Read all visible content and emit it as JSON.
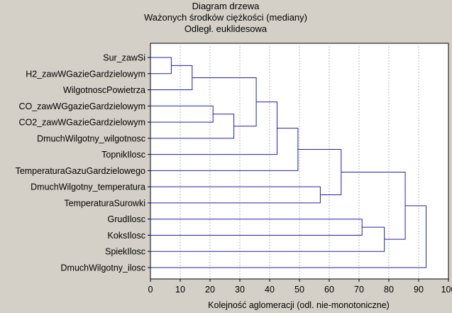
{
  "chart_data": {
    "type": "dendrogram",
    "title_lines": [
      "Diagram drzewa",
      "Ważonych środków ciężkości (mediany)",
      "Odległ. euklidesowa"
    ],
    "xlabel": "Kolejność aglomeracji (odl. nie-monotoniczne)",
    "xlim": [
      0,
      100
    ],
    "xticks": [
      "0",
      "10",
      "20",
      "30",
      "40",
      "50",
      "60",
      "70",
      "80",
      "90",
      "100"
    ],
    "grid": "vertical dashed",
    "leaves": [
      "Sur_zawSi",
      "H2_zawWGazieGardzielowym",
      "WilgotnoscPowietrza",
      "CO_zawWGgazieGardzielowym",
      "CO2_zawWGazieGardzielowym",
      "DmuchWilgotny_wilgotnosc",
      "TopnikIlosc",
      "TemperaturaGazuGardzielowego",
      "DmuchWilgotny_temperatura",
      "TemperaturaSurowki",
      "GrudIlosc",
      "KoksIlosc",
      "SpiekIlosc",
      "DmuchWilgotny_ilosc"
    ],
    "merges": [
      {
        "a": "L0",
        "b": "L1",
        "height": 7
      },
      {
        "a": "N0",
        "b": "L2",
        "height": 14
      },
      {
        "a": "L3",
        "b": "L4",
        "height": 21
      },
      {
        "a": "N2",
        "b": "L5",
        "height": 28
      },
      {
        "a": "N1",
        "b": "N3",
        "height": 35.5
      },
      {
        "a": "N4",
        "b": "L6",
        "height": 42.5
      },
      {
        "a": "N5",
        "b": "L7",
        "height": 49.5
      },
      {
        "a": "L8",
        "b": "L9",
        "height": 57
      },
      {
        "a": "N6",
        "b": "N7",
        "height": 64
      },
      {
        "a": "L10",
        "b": "L11",
        "height": 71
      },
      {
        "a": "N9",
        "b": "L12",
        "height": 78.5
      },
      {
        "a": "N8",
        "b": "N10",
        "height": 85.5
      },
      {
        "a": "N11",
        "b": "L13",
        "height": 92.5
      }
    ],
    "colors": {
      "link": "#2020b0",
      "background": "#d4d0c8",
      "plot_area": "#ffffff"
    }
  }
}
